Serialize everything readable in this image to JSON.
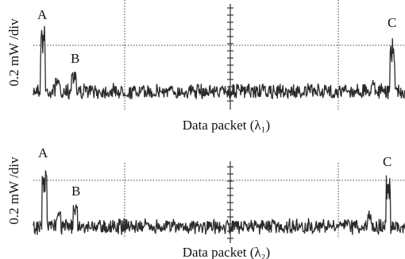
{
  "panels": [
    {
      "ylabel": "0.2 mW /div",
      "xlabel": "Data packet (λ₁)",
      "peaks": [
        "A",
        "B",
        "C"
      ]
    },
    {
      "ylabel": "0.2 mW /div",
      "xlabel": "Data packet (λ₂)",
      "peaks": [
        "A",
        "B",
        "C"
      ]
    }
  ]
}
